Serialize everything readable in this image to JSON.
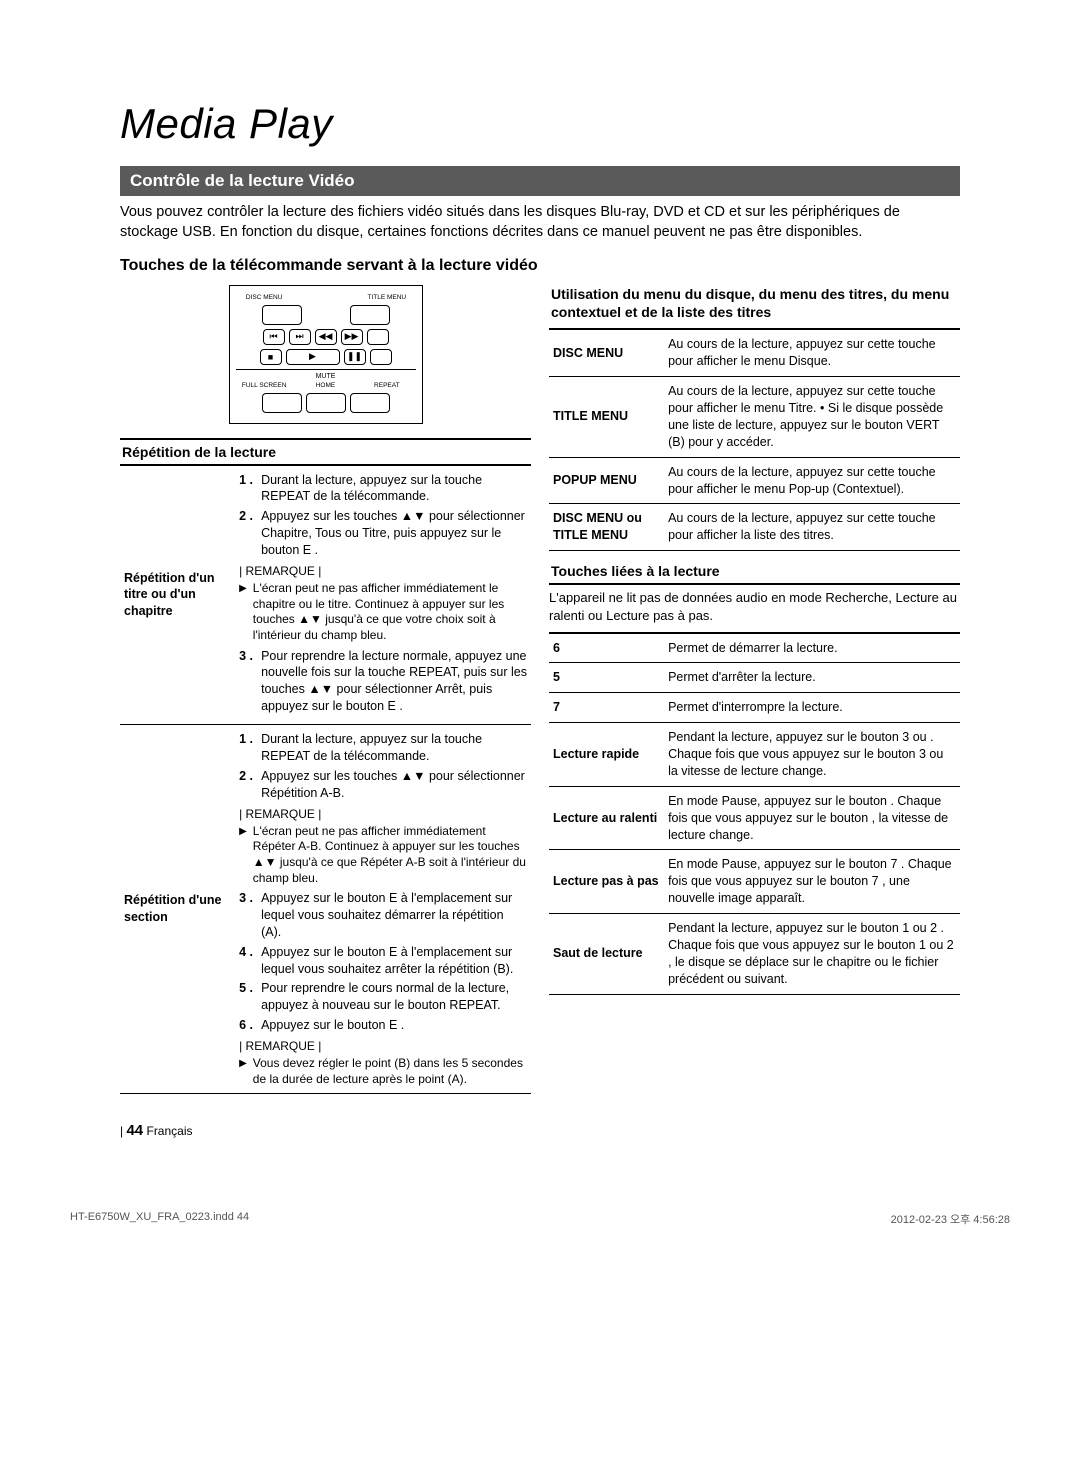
{
  "page": {
    "title": "Media Play",
    "section_header": "Contrôle de la lecture Vidéo",
    "intro": "Vous pouvez contrôler la lecture des fichiers vidéo situés dans les disques Blu-ray, DVD et CD et sur les périphériques de stockage USB. En fonction du disque, certaines fonctions décrites dans ce manuel peuvent ne pas être disponibles.",
    "subheading": "Touches de la télécommande servant à la lecture vidéo",
    "footer_page": "44",
    "footer_lang": "Français",
    "print_left": "HT-E6750W_XU_FRA_0223.indd   44",
    "print_right": "2012-02-23   오후 4:56:28"
  },
  "remote": {
    "lbl_disc": "DISC MENU",
    "lbl_title": "TITLE MENU",
    "lbl_mute": "MUTE",
    "lbl_full": "FULL SCREEN",
    "lbl_home": "HOME",
    "lbl_repeat": "REPEAT"
  },
  "left": {
    "box_title": "Répétition de la lecture",
    "row1_label": "Répétition d'un titre ou d'un chapitre",
    "row1": {
      "s1": "Durant la lecture, appuyez sur la touche REPEAT de la télécommande.",
      "s2": "Appuyez sur les touches ▲▼ pour sélectionner Chapitre, Tous ou Titre, puis appuyez sur le bouton E    .",
      "note_lbl": "| REMARQUE |",
      "note": "L'écran peut ne pas afficher immédiatement le chapitre ou le titre. Continuez à appuyer sur les touches ▲▼ jusqu'à ce que votre choix soit à l'intérieur du champ bleu.",
      "s3": "Pour reprendre la lecture normale, appuyez une nouvelle fois sur la touche REPEAT, puis sur les touches ▲▼ pour sélectionner Arrêt, puis appuyez sur le bouton E    ."
    },
    "row2_label": "Répétition d'une section",
    "row2": {
      "s1": "Durant la lecture, appuyez sur la touche REPEAT de la télécommande.",
      "s2": "Appuyez sur les touches ▲▼ pour sélectionner Répétition A-B.",
      "note1_lbl": "| REMARQUE |",
      "note1": "L'écran peut ne pas afficher immédiatement Répéter A-B. Continuez à appuyer sur les touches ▲▼ jusqu'à ce que Répéter A-B soit à l'intérieur du champ bleu.",
      "s3": "Appuyez sur le bouton E     à l'emplacement sur lequel vous souhaitez démarrer la répétition (A).",
      "s4": "Appuyez sur le bouton E     à l'emplacement sur lequel vous souhaitez arrêter la répétition (B).",
      "s5": "Pour reprendre le cours normal de la lecture, appuyez à nouveau sur le bouton REPEAT.",
      "s6": "Appuyez sur le bouton E    .",
      "note2_lbl": "| REMARQUE |",
      "note2": "Vous devez régler le point (B) dans les 5 secondes de la durée de lecture après le point (A)."
    }
  },
  "right": {
    "title1": "Utilisation du menu du disque, du menu des titres, du menu contextuel et de la liste des titres",
    "menu_table": [
      {
        "k": "DISC MENU",
        "v": "Au cours de la lecture, appuyez sur cette touche pour afficher le menu Disque."
      },
      {
        "k": "TITLE MENU",
        "v": "Au cours de la lecture, appuyez sur cette touche pour afficher le menu Titre.\n• Si le disque possède une liste de lecture, appuyez sur le bouton VERT (B) pour y accéder."
      },
      {
        "k": "POPUP MENU",
        "v": "Au cours de la lecture, appuyez sur cette touche pour afficher le menu Pop-up (Contextuel)."
      },
      {
        "k": "DISC MENU ou TITLE MENU",
        "v": "Au cours de la lecture, appuyez sur cette touche pour afficher la liste des titres."
      }
    ],
    "title2": "Touches liées à la lecture",
    "title2_note": "L'appareil ne lit pas de données audio en mode Recherche, Lecture au ralenti ou Lecture pas à pas.",
    "play_table": [
      {
        "k": "6",
        "v": "Permet de démarrer la lecture."
      },
      {
        "k": "5",
        "v": "Permet d'arrêter la lecture."
      },
      {
        "k": "7",
        "v": "Permet d'interrompre la lecture."
      },
      {
        "k": "Lecture rapide",
        "v": "Pendant la lecture, appuyez sur le bouton 3    ou    . Chaque fois que vous appuyez sur le bouton 3    ou     la vitesse de lecture change."
      },
      {
        "k": "Lecture au ralenti",
        "v": "En mode Pause, appuyez sur le bouton    .\nChaque fois que vous appuyez sur le bouton    , la vitesse de lecture change."
      },
      {
        "k": "Lecture pas à pas",
        "v": "En mode Pause, appuyez sur le bouton 7  . Chaque fois que vous appuyez sur le bouton 7  , une nouvelle image apparaît."
      },
      {
        "k": "Saut de lecture",
        "v": "Pendant la lecture, appuyez sur le bouton 1    ou 2  . Chaque fois que vous appuyez sur le bouton 1    ou 2  , le disque se déplace sur le chapitre ou le fichier précédent ou suivant."
      }
    ]
  }
}
